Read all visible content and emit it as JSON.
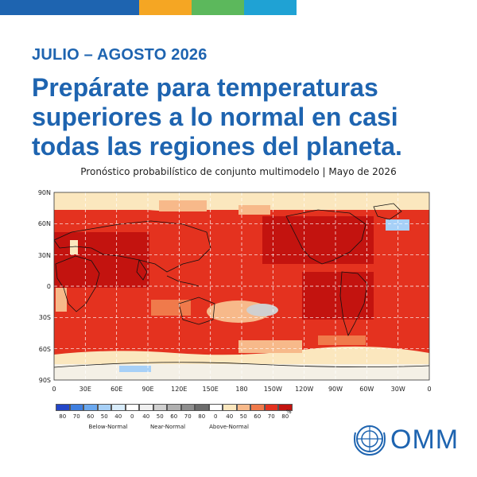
{
  "header": {
    "period": "JULIO – AGOSTO 2026",
    "headline_lines": [
      "Prepárate para temperaturas",
      "superiores a lo normal en casi",
      "todas las regiones del planeta."
    ],
    "caption": "Pronóstico probabilístico de conjunto multimodelo | Mayo de 2026"
  },
  "topbar_colors": [
    "#1e64b0",
    "#f5a623",
    "#5cb85c",
    "#1fa2d4"
  ],
  "map": {
    "lat_labels": [
      "90N",
      "60N",
      "30N",
      "0",
      "30S",
      "60S",
      "90S"
    ],
    "lon_labels": [
      "0",
      "30E",
      "60E",
      "90E",
      "120E",
      "150E",
      "180",
      "150W",
      "120W",
      "90W",
      "60W",
      "30W",
      "0"
    ]
  },
  "legend": {
    "tick_labels": [
      "80",
      "70",
      "60",
      "50",
      "40",
      "0",
      "40",
      "50",
      "60",
      "70",
      "80",
      "0",
      "40",
      "50",
      "60",
      "70",
      "80"
    ],
    "unit": "%",
    "categories": [
      "Below-Normal",
      "Near-Normal",
      "Above-Normal"
    ],
    "colors": [
      "#2346c8",
      "#3f7fe0",
      "#6aa8ef",
      "#a7d0f7",
      "#d8ecfb",
      "#ffffff",
      "#f0f0f0",
      "#d0d0d0",
      "#b0b0b0",
      "#8e8e8e",
      "#6c6c6c",
      "#ffffff",
      "#fbe7be",
      "#f7b98a",
      "#f07a4b",
      "#e4321f",
      "#c3130f"
    ]
  },
  "logo": {
    "text": "OMM",
    "icon": "wmo-emblem-icon"
  }
}
